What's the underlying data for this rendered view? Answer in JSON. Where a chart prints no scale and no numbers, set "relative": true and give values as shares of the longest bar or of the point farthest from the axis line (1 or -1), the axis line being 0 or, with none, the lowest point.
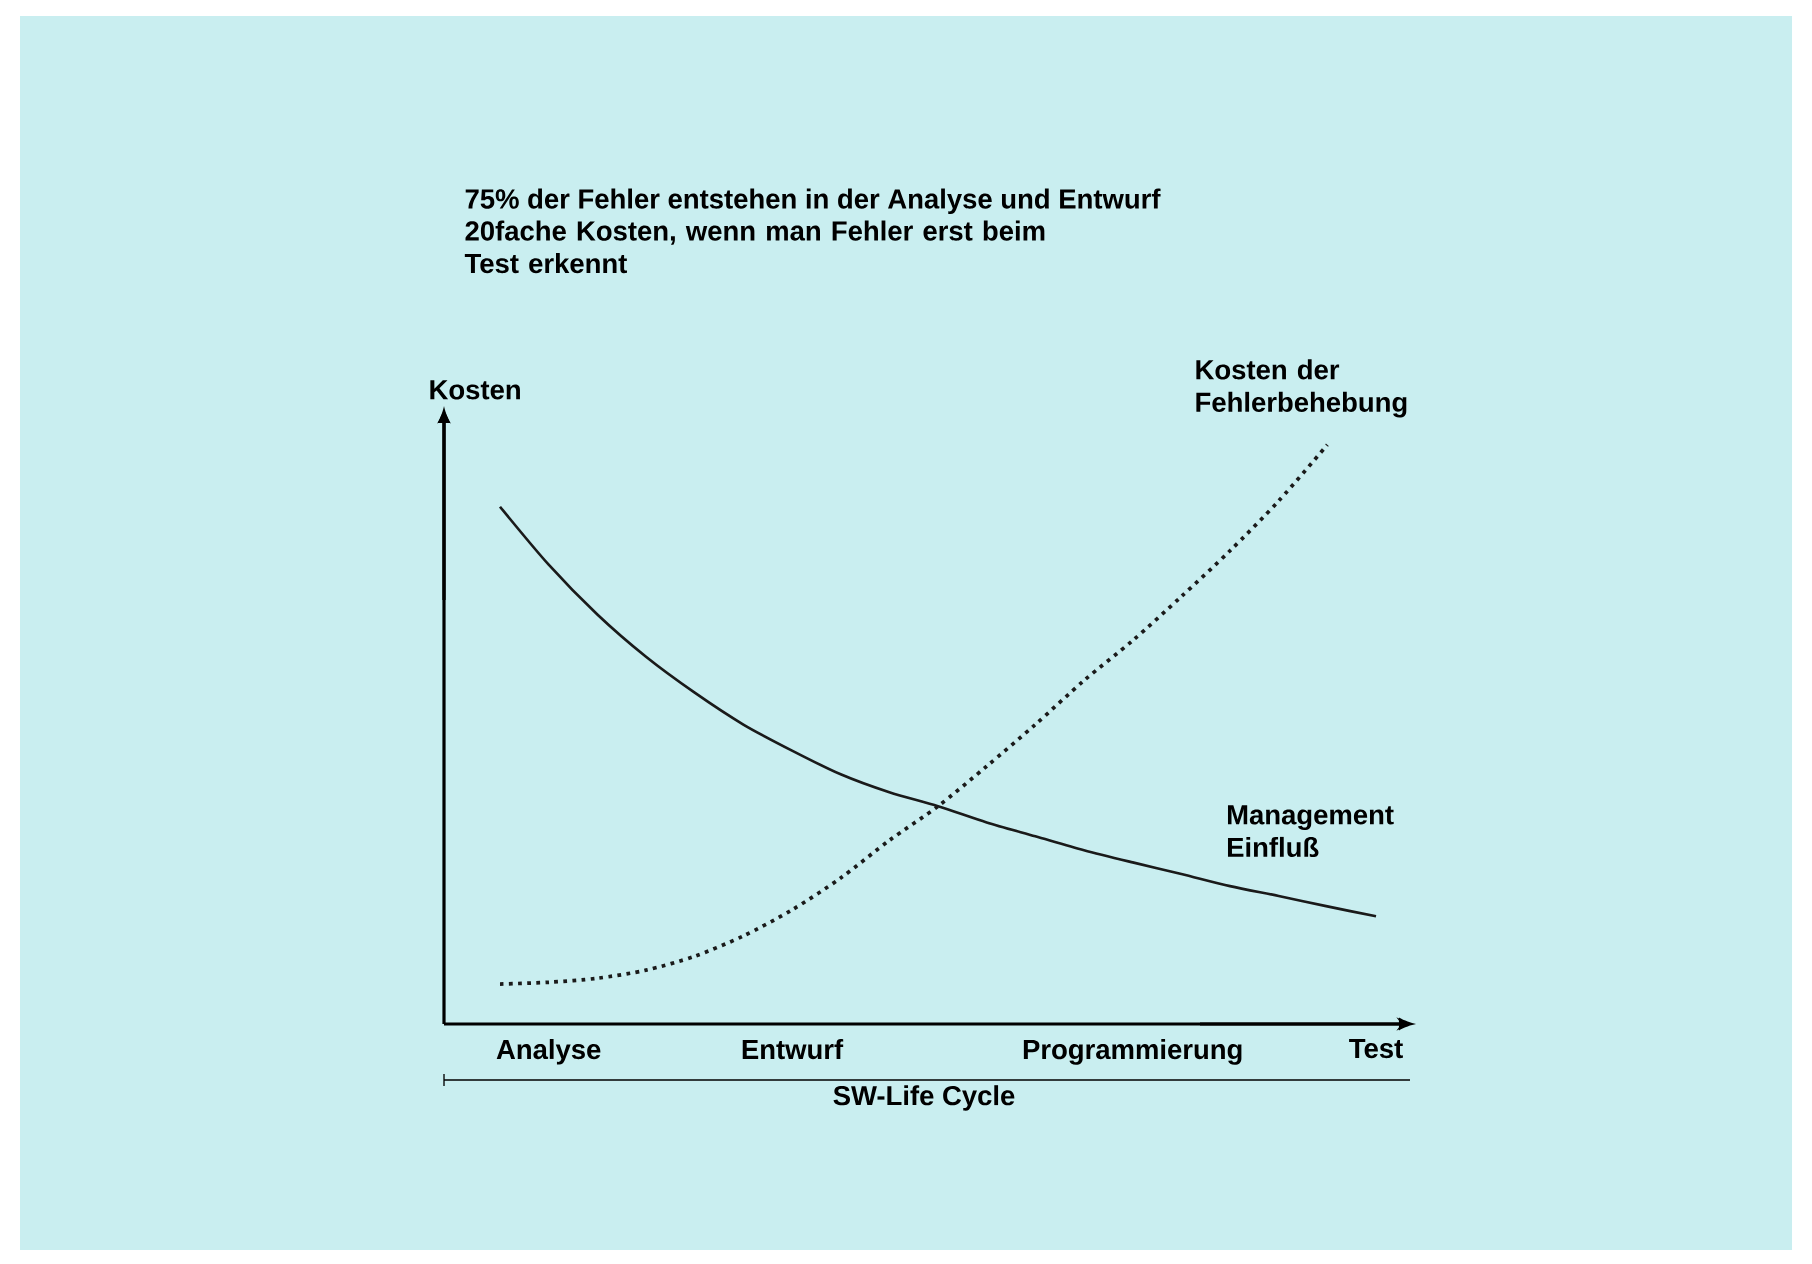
{
  "chart_data": {
    "type": "line",
    "relative": true,
    "title": "75% der Fehler entstehen in der Analyse und Entwurf",
    "subtitle": "20fache Kosten, wenn man Fehler erst beim Test erkennt",
    "xlabel": "SW-Life Cycle",
    "ylabel": "Kosten",
    "categories": [
      null,
      "Analyse",
      null,
      null,
      null,
      null,
      "Entwurf",
      null,
      null,
      null,
      null,
      null,
      null,
      "Programmierung",
      null,
      null,
      null,
      null,
      "Test"
    ],
    "series": [
      {
        "name": "Management Einfluß",
        "color": "#1a1a1a",
        "line_style": "solid",
        "values": [
          0.893,
          0.793,
          0.707,
          0.634,
          0.572,
          0.517,
          0.472,
          0.431,
          0.4,
          0.376,
          0.348,
          0.324,
          0.3,
          0.279,
          0.259,
          0.238,
          0.221,
          0.203,
          0.186
        ]
      },
      {
        "name": "Kosten der Fehlerbehebung",
        "color": "#1a1a1a",
        "line_style": "dotted",
        "values": [
          0.069,
          0.072,
          0.079,
          0.093,
          0.117,
          0.152,
          0.197,
          0.252,
          0.317,
          0.376,
          0.445,
          0.517,
          0.593,
          0.662,
          0.738,
          0.817,
          0.903,
          1.0,
          null
        ]
      }
    ],
    "marker": "none"
  }
}
